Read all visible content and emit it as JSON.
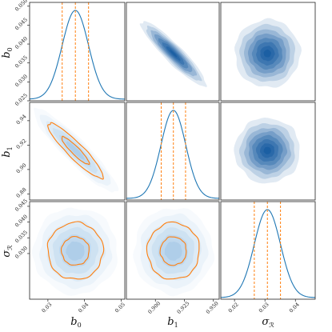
{
  "chart_data": {
    "type": "corner",
    "parameters": [
      {
        "key": "b0",
        "label": "b",
        "sub": "0",
        "range": [
          0.025,
          0.051
        ],
        "ticks": [
          "0.025",
          "0.030",
          "0.035",
          "0.040",
          "0.045",
          "0.050"
        ],
        "xticks": [
          "0.03",
          "0.04",
          "0.05"
        ]
      },
      {
        "key": "b1",
        "label": "b",
        "sub": "1",
        "range": [
          0.875,
          0.955
        ],
        "ticks": [
          "0.88",
          "0.90",
          "0.92",
          "0.94"
        ],
        "xticks": [
          "0.900",
          "0.925",
          "0.950"
        ]
      },
      {
        "key": "sigma",
        "label": "σ",
        "sub": "ℛ",
        "range": [
          0.0155,
          0.0465
        ],
        "ticks": [
          "0.030",
          "0.035",
          "0.040",
          "0.045"
        ],
        "xticks": [
          "0.02",
          "0.03",
          "0.04"
        ]
      }
    ],
    "marginals": [
      {
        "param": "b0",
        "mean": 0.0375,
        "sd": 0.0036,
        "quantiles": [
          0.0339,
          0.0375,
          0.0411
        ]
      },
      {
        "param": "b1",
        "mean": 0.9155,
        "sd": 0.0107,
        "quantiles": [
          0.905,
          0.9155,
          0.926
        ]
      },
      {
        "param": "sigma",
        "mean": 0.0308,
        "sd": 0.0043,
        "quantiles": [
          0.0265,
          0.0308,
          0.0351
        ]
      }
    ],
    "pairs": [
      {
        "x": "b0",
        "y": "b1",
        "correlation": -0.92
      },
      {
        "x": "b0",
        "y": "sigma",
        "correlation": 0.0
      },
      {
        "x": "b1",
        "y": "sigma",
        "correlation": 0.0
      }
    ],
    "colors": {
      "kde": "#1f77b4",
      "contour": "#ff7f0e",
      "quantile": "#ff7f0e",
      "fill": "#08519c"
    }
  },
  "labels": {
    "row0": {
      "main": "b",
      "sub": "0"
    },
    "row1": {
      "main": "b",
      "sub": "1"
    },
    "row2": {
      "main": "σ",
      "sub": "ℛ"
    },
    "col0": {
      "main": "b",
      "sub": "0"
    },
    "col1": {
      "main": "b",
      "sub": "1"
    },
    "col2": {
      "main": "σ",
      "sub": "ℛ"
    }
  }
}
